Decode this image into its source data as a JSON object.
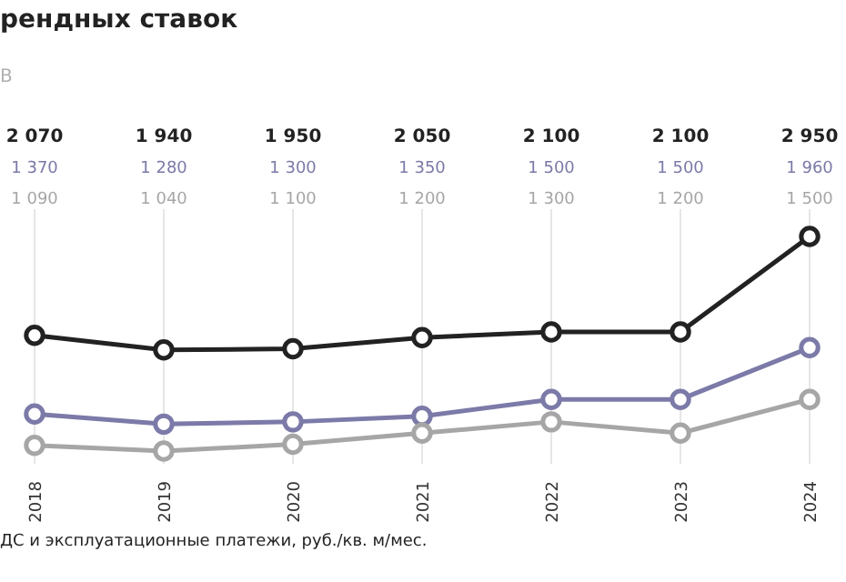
{
  "chart_data": {
    "type": "line",
    "title": "рендных ставок",
    "subtitle": "В",
    "categories": [
      "2018",
      "2019",
      "2020",
      "2021",
      "2022",
      "2023",
      "2024"
    ],
    "series": [
      {
        "color": "#222222",
        "values": [
          2070,
          1940,
          1950,
          2050,
          2100,
          2100,
          2950
        ],
        "value_labels": [
          "2 070",
          "1 940",
          "1 950",
          "2 050",
          "2 100",
          "2 100",
          "2 950"
        ]
      },
      {
        "color": "#7b7aa8",
        "values": [
          1370,
          1280,
          1300,
          1350,
          1500,
          1500,
          1960
        ],
        "value_labels": [
          "1 370",
          "1 280",
          "1 300",
          "1 350",
          "1 500",
          "1 500",
          "1 960"
        ]
      },
      {
        "color": "#a6a6a6",
        "values": [
          1090,
          1040,
          1100,
          1200,
          1300,
          1200,
          1500
        ],
        "value_labels": [
          "1 090",
          "1 040",
          "1 100",
          "1 200",
          "1 300",
          "1 200",
          "1 500"
        ]
      }
    ],
    "marker": "circle",
    "line_style": "solid",
    "grid": "x",
    "legend": false,
    "annotations": [
      "ДС и эксплуатационные платежи, руб./кв. м/мес."
    ]
  }
}
